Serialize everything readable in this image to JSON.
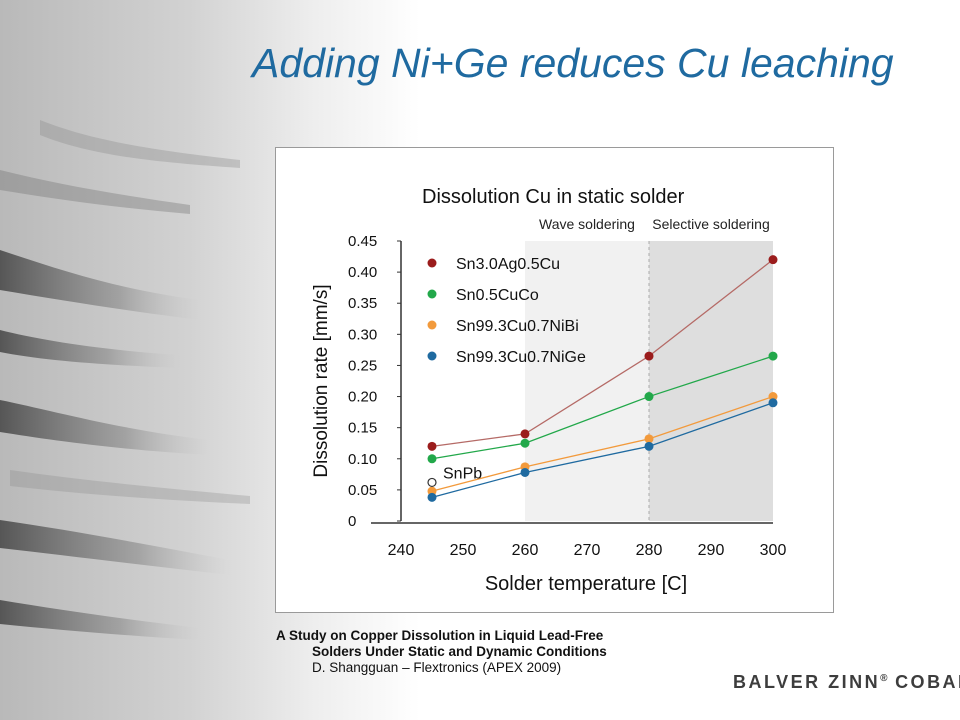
{
  "slide": {
    "title": "Adding Ni+Ge reduces Cu leaching",
    "caption": {
      "line1": "A Study on Copper Dissolution in Liquid Lead-Free",
      "line2": "Solders Under Static and Dynamic Conditions",
      "line3": "D. Shangguan – Flextronics (APEX 2009)"
    },
    "brand": {
      "name": "BALVER ZINN",
      "mark1": "®",
      "sep": "COBAR",
      "mark2": "®"
    }
  },
  "chart_data": {
    "type": "line",
    "title": "Dissolution Cu in static solder",
    "xlabel": "Solder temperature [C]",
    "ylabel": "Dissolution rate [mm/s]",
    "xlim": [
      240,
      300
    ],
    "ylim": [
      0,
      0.45
    ],
    "x_ticks": [
      "240",
      "250",
      "260",
      "270",
      "280",
      "290",
      "300"
    ],
    "y_ticks": [
      "0",
      "0.05",
      "0.10",
      "0.15",
      "0.20",
      "0.25",
      "0.30",
      "0.35",
      "0.40",
      "0.45"
    ],
    "regions": [
      {
        "label": "Wave soldering",
        "from": 260,
        "to": 280,
        "color": "#f1f1f1"
      },
      {
        "label": "Selective soldering",
        "from": 280,
        "to": 300,
        "color": "#dedede"
      }
    ],
    "legend_position": "top-left",
    "series": [
      {
        "name": "Sn3.0Ag0.5Cu",
        "color": "#9b1c1c",
        "line_color": "#b56a66",
        "x": [
          245,
          260,
          280,
          300
        ],
        "values": [
          0.12,
          0.14,
          0.265,
          0.42
        ]
      },
      {
        "name": "Sn0.5CuCo",
        "color": "#22a84a",
        "line_color": "#22a84a",
        "x": [
          245,
          260,
          280,
          300
        ],
        "values": [
          0.1,
          0.125,
          0.2,
          0.265
        ]
      },
      {
        "name": "Sn99.3Cu0.7NiBi",
        "color": "#f29a3c",
        "line_color": "#f29a3c",
        "x": [
          245,
          260,
          280,
          300
        ],
        "values": [
          0.048,
          0.087,
          0.132,
          0.2
        ]
      },
      {
        "name": "Sn99.3Cu0.7NiGe",
        "color": "#1f6aa0",
        "line_color": "#1f6aa0",
        "x": [
          245,
          260,
          280,
          300
        ],
        "values": [
          0.038,
          0.078,
          0.12,
          0.19
        ]
      }
    ],
    "reference_point": {
      "name": "SnPb",
      "x": 245,
      "value": 0.062
    }
  }
}
